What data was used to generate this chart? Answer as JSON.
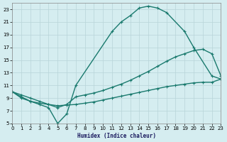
{
  "xlabel": "Humidex (Indice chaleur)",
  "background_color": "#d5edf0",
  "grid_color": "#b8d4d8",
  "line_color": "#1a7a6e",
  "xlim": [
    0,
    23
  ],
  "ylim": [
    5,
    24
  ],
  "x_ticks": [
    0,
    1,
    2,
    3,
    4,
    5,
    6,
    7,
    8,
    9,
    10,
    11,
    12,
    13,
    14,
    15,
    16,
    17,
    18,
    19,
    20,
    21,
    22,
    23
  ],
  "y_ticks": [
    5,
    7,
    9,
    11,
    13,
    15,
    17,
    19,
    21,
    23
  ],
  "curve_top_x": [
    0,
    1,
    2,
    3,
    4,
    5,
    6,
    7,
    11,
    12,
    13,
    14,
    15,
    16,
    17,
    19,
    20,
    22,
    23
  ],
  "curve_top_y": [
    10,
    9,
    8.5,
    8,
    7.5,
    5,
    6.5,
    11,
    19.5,
    21,
    22,
    23.2,
    23.5,
    23.2,
    22.5,
    19.5,
    17,
    12.5,
    12
  ],
  "curve_mid_x": [
    0,
    1,
    2,
    3,
    4,
    5,
    6,
    7,
    8,
    9,
    10,
    11,
    12,
    13,
    14,
    15,
    16,
    17,
    18,
    19,
    20,
    21,
    22,
    23
  ],
  "curve_mid_y": [
    10,
    9.5,
    9.0,
    8.5,
    8.0,
    7.5,
    8.0,
    9.2,
    9.5,
    9.8,
    10.2,
    10.7,
    11.2,
    11.8,
    12.5,
    13.2,
    14.0,
    14.8,
    15.5,
    16.0,
    16.5,
    16.7,
    16.0,
    12.5
  ],
  "curve_bot_x": [
    0,
    1,
    2,
    3,
    4,
    5,
    6,
    7,
    8,
    9,
    10,
    11,
    12,
    13,
    14,
    15,
    16,
    17,
    18,
    19,
    20,
    21,
    22,
    23
  ],
  "curve_bot_y": [
    10,
    9.2,
    8.5,
    8.2,
    8.0,
    7.8,
    7.9,
    8.0,
    8.2,
    8.4,
    8.7,
    9.0,
    9.3,
    9.6,
    9.9,
    10.2,
    10.5,
    10.8,
    11.0,
    11.2,
    11.4,
    11.5,
    11.5,
    12
  ],
  "line_width": 1.0,
  "marker_size": 3
}
